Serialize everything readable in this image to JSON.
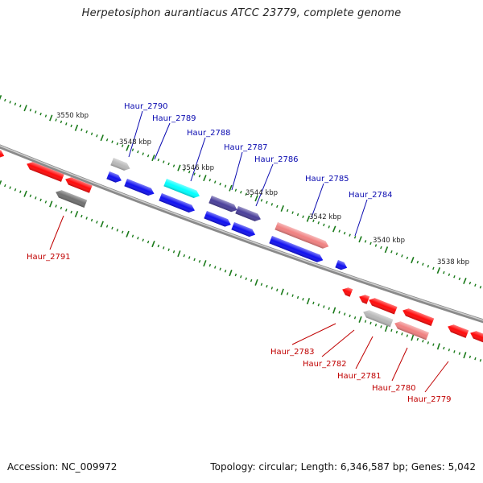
{
  "title": "Herpetosiphon aurantiacus ATCC 23779, complete genome",
  "accession_label": "Accession: NC_009972",
  "topology_label": "Topology: circular; Length: 6,346,587 bp; Genes: 5,042",
  "colors": {
    "backbone": "#8a8a8a",
    "tick_green": "#1a7a1a",
    "label_forward": "#0a0ab0",
    "label_reverse": "#c00000",
    "gene_red": "#ff0a0a",
    "gene_blue": "#1010f0",
    "gene_navy": "#4a3f9a",
    "gene_pink": "#f08080",
    "gene_cyan": "#00ffff",
    "gene_gray_light": "#b8b8b8",
    "gene_gray_dark": "#707070"
  },
  "scale_labels": [
    "3550 kbp",
    "3548 kbp",
    "3546 kbp",
    "3544 kbp",
    "3542 kbp",
    "3540 kbp",
    "3538 kbp"
  ],
  "gene_labels_forward": [
    "Haur_2790",
    "Haur_2789",
    "Haur_2788",
    "Haur_2787",
    "Haur_2786",
    "Haur_2785",
    "Haur_2784"
  ],
  "gene_labels_reverse": [
    "Haur_2791",
    "Haur_2783",
    "Haur_2782",
    "Haur_2781",
    "Haur_2780",
    "Haur_2779"
  ]
}
